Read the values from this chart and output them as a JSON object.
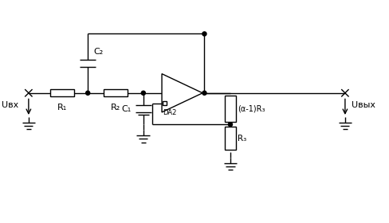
{
  "bg_color": "#ffffff",
  "line_color": "#000000",
  "figsize": [
    4.89,
    2.8
  ],
  "dpi": 100,
  "labels": {
    "C2": "C₂",
    "C1": "C₁",
    "R1": "R₁",
    "R2": "R₂",
    "R3": "R₃",
    "alpha_R3": "(α-1)R₃",
    "DA2": "DA2",
    "U_in": "Uвх",
    "U_out": "Uвых"
  }
}
